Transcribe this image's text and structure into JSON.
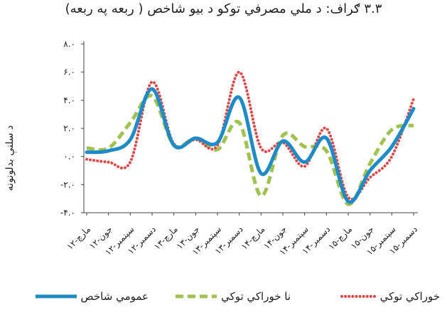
{
  "chart_data": {
    "type": "line",
    "title": "۳.۳ ګراف: د ملي مصرفي توکو د بیو شاخص ( ربعه په ربعه)",
    "ylabel": "د سلنې بدلونونه",
    "xlabel": "",
    "ylim": [
      -4.0,
      8.0
    ],
    "yticks": [
      "-۴.۰",
      "-۲.۰",
      "۰.۰",
      "۲.۰",
      "۴.۰",
      "۶.۰",
      "۸.۰"
    ],
    "ytick_values": [
      -4,
      -2,
      0,
      2,
      4,
      6,
      8
    ],
    "categories": [
      "مارچ-۱۲",
      "جون-۱۲",
      "سپتمبر-۱۲",
      "دسمبر-۱۲",
      "مارچ-۱۳",
      "جون-۱۳",
      "سپتمبر-۱۳",
      "دسمبر-۱۳",
      "مارچ-۱۴",
      "جون-۱۴",
      "سپتمبر-۱۴",
      "دسمبر-۱۴",
      "مارچ-۱۵",
      "جون-۱۵",
      "سپتمبر-۱۵",
      "دسمبر-۱۵"
    ],
    "grid": false,
    "legend_position": "bottom",
    "series": [
      {
        "name": "عمومي شاخص",
        "color": "#1e8bc9",
        "style": "solid",
        "values": [
          0.3,
          0.4,
          1.2,
          4.8,
          0.8,
          1.3,
          1.0,
          4.2,
          -1.2,
          1.1,
          -0.4,
          1.3,
          -3.2,
          -1.0,
          0.7,
          3.4
        ]
      },
      {
        "name": "نا خوراکي توکي",
        "color": "#a2c24e",
        "style": "dashed",
        "values": [
          0.6,
          0.6,
          2.4,
          4.3,
          0.8,
          1.3,
          0.5,
          2.4,
          -2.8,
          1.5,
          0.7,
          0.4,
          -3.4,
          -0.5,
          1.9,
          2.2
        ]
      },
      {
        "name": "خوراکي توکي",
        "color": "#e04848",
        "style": "dotted",
        "values": [
          -0.2,
          -0.4,
          -0.4,
          5.3,
          0.9,
          1.2,
          0.8,
          6.0,
          0.6,
          1.0,
          -0.7,
          2.0,
          -2.9,
          -1.5,
          0.0,
          4.1
        ]
      }
    ]
  }
}
